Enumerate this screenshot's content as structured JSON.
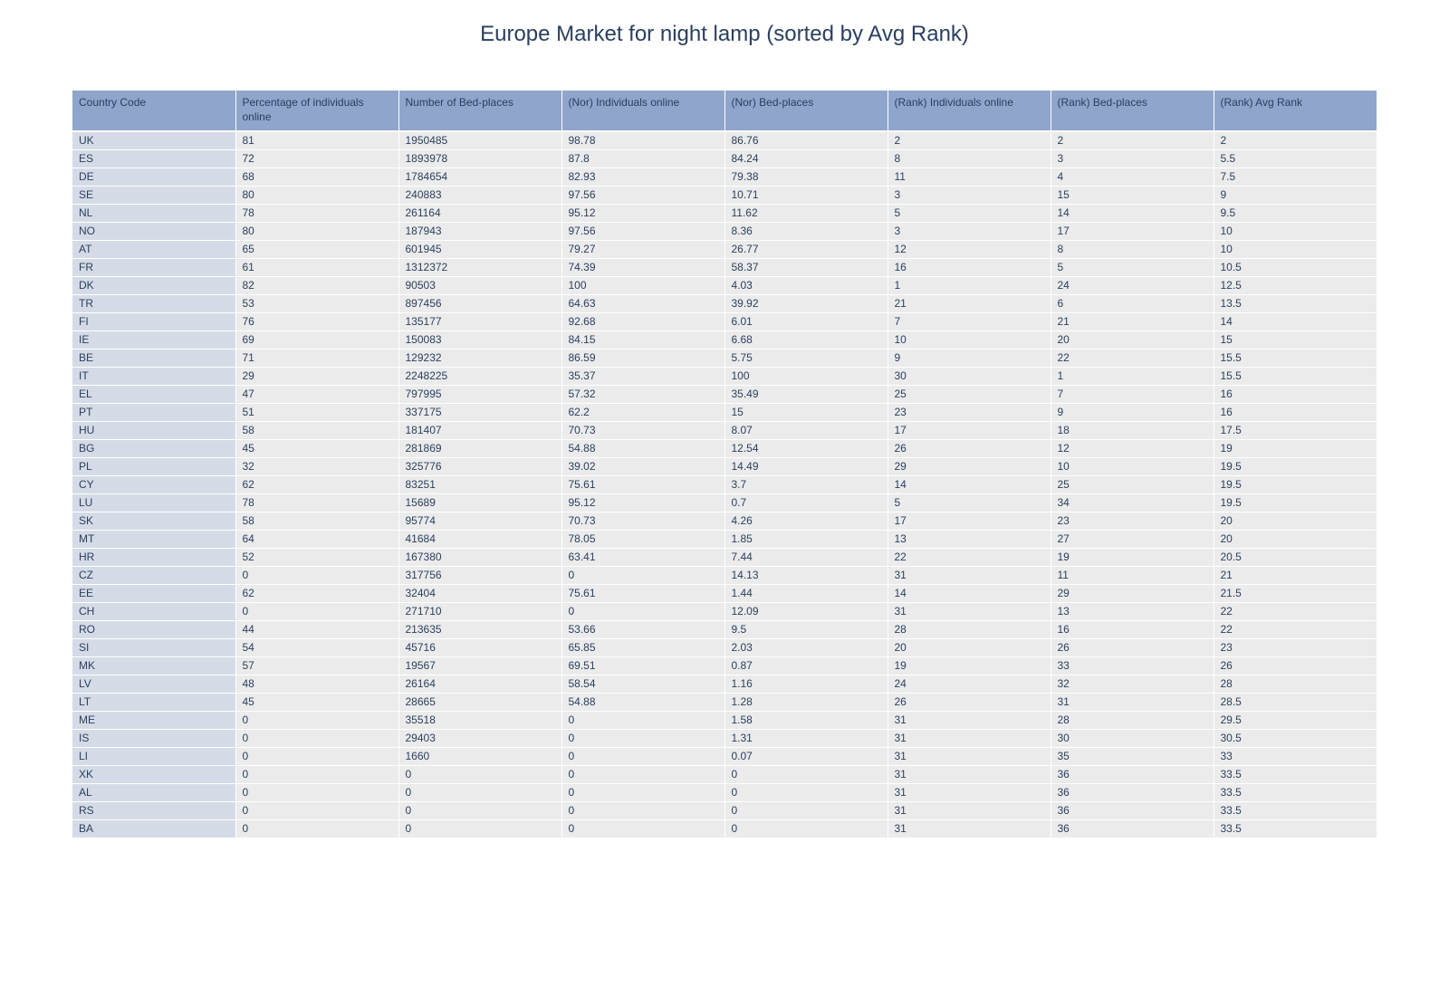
{
  "chart_data": {
    "type": "table",
    "title": "Europe Market for night lamp (sorted by Avg Rank)",
    "columns": [
      "Country Code",
      "Percentage of individuals online",
      "Number of Bed-places",
      "(Nor) Individuals online",
      "(Nor) Bed-places",
      "(Rank) Individuals online",
      "(Rank) Bed-places",
      "(Rank) Avg Rank"
    ],
    "rows": [
      [
        "UK",
        "81",
        "1950485",
        "98.78",
        "86.76",
        "2",
        "2",
        "2"
      ],
      [
        "ES",
        "72",
        "1893978",
        "87.8",
        "84.24",
        "8",
        "3",
        "5.5"
      ],
      [
        "DE",
        "68",
        "1784654",
        "82.93",
        "79.38",
        "11",
        "4",
        "7.5"
      ],
      [
        "SE",
        "80",
        "240883",
        "97.56",
        "10.71",
        "3",
        "15",
        "9"
      ],
      [
        "NL",
        "78",
        "261164",
        "95.12",
        "11.62",
        "5",
        "14",
        "9.5"
      ],
      [
        "NO",
        "80",
        "187943",
        "97.56",
        "8.36",
        "3",
        "17",
        "10"
      ],
      [
        "AT",
        "65",
        "601945",
        "79.27",
        "26.77",
        "12",
        "8",
        "10"
      ],
      [
        "FR",
        "61",
        "1312372",
        "74.39",
        "58.37",
        "16",
        "5",
        "10.5"
      ],
      [
        "DK",
        "82",
        "90503",
        "100",
        "4.03",
        "1",
        "24",
        "12.5"
      ],
      [
        "TR",
        "53",
        "897456",
        "64.63",
        "39.92",
        "21",
        "6",
        "13.5"
      ],
      [
        "FI",
        "76",
        "135177",
        "92.68",
        "6.01",
        "7",
        "21",
        "14"
      ],
      [
        "IE",
        "69",
        "150083",
        "84.15",
        "6.68",
        "10",
        "20",
        "15"
      ],
      [
        "BE",
        "71",
        "129232",
        "86.59",
        "5.75",
        "9",
        "22",
        "15.5"
      ],
      [
        "IT",
        "29",
        "2248225",
        "35.37",
        "100",
        "30",
        "1",
        "15.5"
      ],
      [
        "EL",
        "47",
        "797995",
        "57.32",
        "35.49",
        "25",
        "7",
        "16"
      ],
      [
        "PT",
        "51",
        "337175",
        "62.2",
        "15",
        "23",
        "9",
        "16"
      ],
      [
        "HU",
        "58",
        "181407",
        "70.73",
        "8.07",
        "17",
        "18",
        "17.5"
      ],
      [
        "BG",
        "45",
        "281869",
        "54.88",
        "12.54",
        "26",
        "12",
        "19"
      ],
      [
        "PL",
        "32",
        "325776",
        "39.02",
        "14.49",
        "29",
        "10",
        "19.5"
      ],
      [
        "CY",
        "62",
        "83251",
        "75.61",
        "3.7",
        "14",
        "25",
        "19.5"
      ],
      [
        "LU",
        "78",
        "15689",
        "95.12",
        "0.7",
        "5",
        "34",
        "19.5"
      ],
      [
        "SK",
        "58",
        "95774",
        "70.73",
        "4.26",
        "17",
        "23",
        "20"
      ],
      [
        "MT",
        "64",
        "41684",
        "78.05",
        "1.85",
        "13",
        "27",
        "20"
      ],
      [
        "HR",
        "52",
        "167380",
        "63.41",
        "7.44",
        "22",
        "19",
        "20.5"
      ],
      [
        "CZ",
        "0",
        "317756",
        "0",
        "14.13",
        "31",
        "11",
        "21"
      ],
      [
        "EE",
        "62",
        "32404",
        "75.61",
        "1.44",
        "14",
        "29",
        "21.5"
      ],
      [
        "CH",
        "0",
        "271710",
        "0",
        "12.09",
        "31",
        "13",
        "22"
      ],
      [
        "RO",
        "44",
        "213635",
        "53.66",
        "9.5",
        "28",
        "16",
        "22"
      ],
      [
        "SI",
        "54",
        "45716",
        "65.85",
        "2.03",
        "20",
        "26",
        "23"
      ],
      [
        "MK",
        "57",
        "19567",
        "69.51",
        "0.87",
        "19",
        "33",
        "26"
      ],
      [
        "LV",
        "48",
        "26164",
        "58.54",
        "1.16",
        "24",
        "32",
        "28"
      ],
      [
        "LT",
        "45",
        "28665",
        "54.88",
        "1.28",
        "26",
        "31",
        "28.5"
      ],
      [
        "ME",
        "0",
        "35518",
        "0",
        "1.58",
        "31",
        "28",
        "29.5"
      ],
      [
        "IS",
        "0",
        "29403",
        "0",
        "1.31",
        "31",
        "30",
        "30.5"
      ],
      [
        "LI",
        "0",
        "1660",
        "0",
        "0.07",
        "31",
        "35",
        "33"
      ],
      [
        "XK",
        "0",
        "0",
        "0",
        "0",
        "31",
        "36",
        "33.5"
      ],
      [
        "AL",
        "0",
        "0",
        "0",
        "0",
        "31",
        "36",
        "33.5"
      ],
      [
        "RS",
        "0",
        "0",
        "0",
        "0",
        "31",
        "36",
        "33.5"
      ],
      [
        "BA",
        "0",
        "0",
        "0",
        "0",
        "31",
        "36",
        "33.5"
      ]
    ],
    "colors": {
      "header_fill": "#8fa5cb",
      "first_column_fill": "#d5dbe6",
      "cell_fill": "#ebebeb",
      "text": "#2a3f5f"
    }
  }
}
